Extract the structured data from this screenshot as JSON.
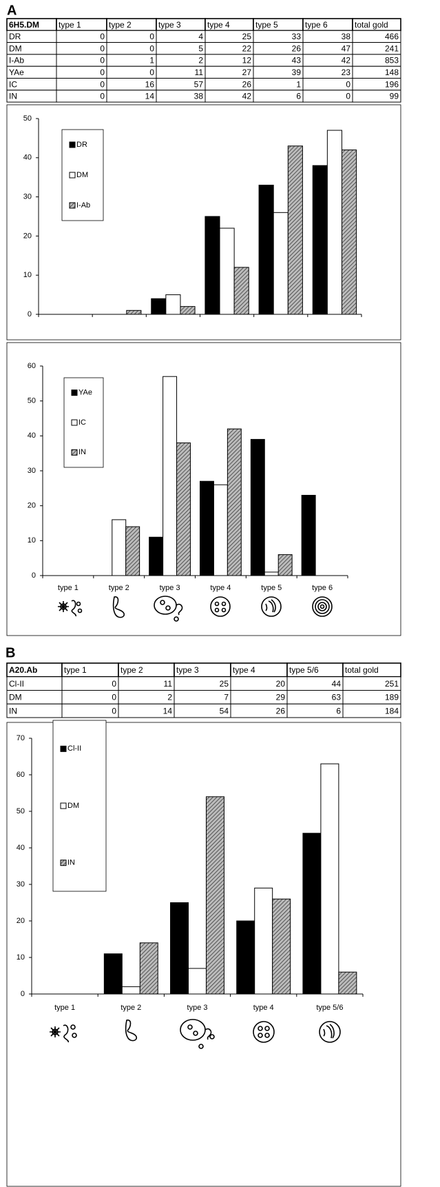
{
  "panel_labels": [
    "A",
    "B"
  ],
  "tables": [
    {
      "header": [
        "6H5.DM",
        "type 1",
        "type 2",
        "type 3",
        "type 4",
        "type 5",
        "type 6",
        "total gold"
      ],
      "rows": [
        [
          "DR",
          0,
          0,
          4,
          25,
          33,
          38,
          466
        ],
        [
          "DM",
          0,
          0,
          5,
          22,
          26,
          47,
          241
        ],
        [
          "I-Ab",
          0,
          1,
          2,
          12,
          43,
          42,
          853
        ],
        [
          "YAe",
          0,
          0,
          11,
          27,
          39,
          23,
          148
        ],
        [
          "IC",
          0,
          16,
          57,
          26,
          1,
          0,
          196
        ],
        [
          "IN",
          0,
          14,
          38,
          42,
          6,
          0,
          99
        ]
      ]
    },
    {
      "header": [
        "A20.Ab",
        "type 1",
        "type 2",
        "type 3",
        "type 4",
        "type 5/6",
        "total gold"
      ],
      "rows": [
        [
          "Cl-II",
          0,
          11,
          25,
          20,
          44,
          251
        ],
        [
          "DM",
          0,
          2,
          7,
          29,
          63,
          189
        ],
        [
          "IN",
          0,
          14,
          54,
          26,
          6,
          184
        ]
      ]
    }
  ],
  "chart_data": [
    {
      "type": "bar",
      "categories": [
        null,
        null,
        null,
        null,
        null,
        null
      ],
      "series": [
        {
          "name": "DR",
          "color": "#000000",
          "values": [
            0,
            0,
            4,
            25,
            33,
            38
          ]
        },
        {
          "name": "DM",
          "color": "#ffffff",
          "values": [
            0,
            0,
            5,
            22,
            26,
            47
          ]
        },
        {
          "name": "I-Ab",
          "color": "#777777",
          "hatch": true,
          "values": [
            0,
            1,
            2,
            12,
            43,
            42
          ]
        }
      ],
      "ylim": [
        0,
        50
      ],
      "yticks": [
        0,
        10,
        20,
        30,
        40,
        50
      ]
    },
    {
      "type": "bar",
      "categories": [
        "type 1",
        "type 2",
        "type 3",
        "type 4",
        "type 5",
        "type 6"
      ],
      "series": [
        {
          "name": "YAe",
          "color": "#000000",
          "values": [
            0,
            0,
            11,
            27,
            39,
            23
          ]
        },
        {
          "name": "IC",
          "color": "#ffffff",
          "values": [
            0,
            16,
            57,
            26,
            1,
            0
          ]
        },
        {
          "name": "IN",
          "color": "#777777",
          "hatch": true,
          "values": [
            0,
            14,
            38,
            42,
            6,
            0
          ]
        }
      ],
      "ylim": [
        0,
        60
      ],
      "yticks": [
        0,
        10,
        20,
        30,
        40,
        50,
        60
      ]
    },
    {
      "type": "bar",
      "categories": [
        "type 1",
        "type 2",
        "type 3",
        "type 4",
        "type 5/6"
      ],
      "series": [
        {
          "name": "Cl-II",
          "color": "#000000",
          "values": [
            0,
            11,
            25,
            20,
            44
          ]
        },
        {
          "name": "DM",
          "color": "#ffffff",
          "values": [
            0,
            2,
            7,
            29,
            63
          ]
        },
        {
          "name": "IN",
          "color": "#777777",
          "hatch": true,
          "values": [
            0,
            14,
            54,
            26,
            6
          ]
        }
      ],
      "ylim": [
        0,
        70
      ],
      "yticks": [
        0,
        10,
        20,
        30,
        40,
        50,
        60,
        70
      ]
    }
  ]
}
